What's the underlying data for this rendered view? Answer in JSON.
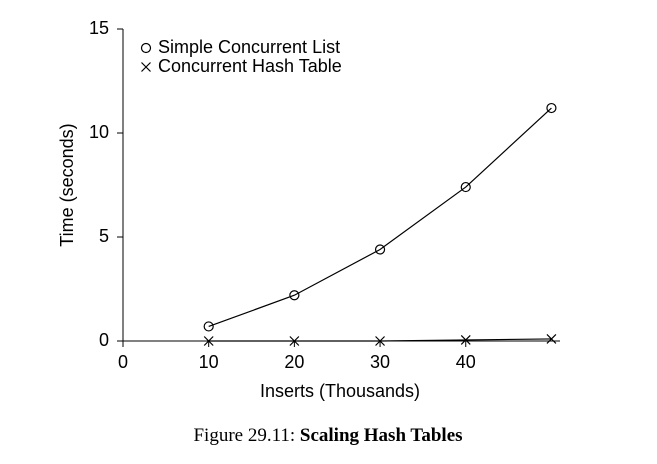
{
  "chart_data": {
    "type": "line",
    "x_label": "Inserts (Thousands)",
    "y_label": "Time (seconds)",
    "x": [
      10,
      20,
      30,
      40,
      50
    ],
    "series": [
      {
        "name": "Simple Concurrent List",
        "color": "#000000",
        "marker": "circle",
        "values": [
          0.7,
          2.2,
          4.4,
          7.4,
          11.2
        ]
      },
      {
        "name": "Concurrent Hash Table",
        "color": "#000000",
        "marker": "cross",
        "values": [
          0.0,
          0.0,
          0.0,
          0.05,
          0.1
        ]
      }
    ],
    "xlim": [
      0,
      51
    ],
    "xticks": [
      0,
      10,
      20,
      30,
      40
    ],
    "ylim": [
      0,
      15
    ],
    "yticks": [
      0,
      5,
      10,
      15
    ],
    "legend": "upper left",
    "grid": false
  },
  "caption": {
    "label": "Figure 29.11:",
    "title": "Scaling Hash Tables"
  }
}
